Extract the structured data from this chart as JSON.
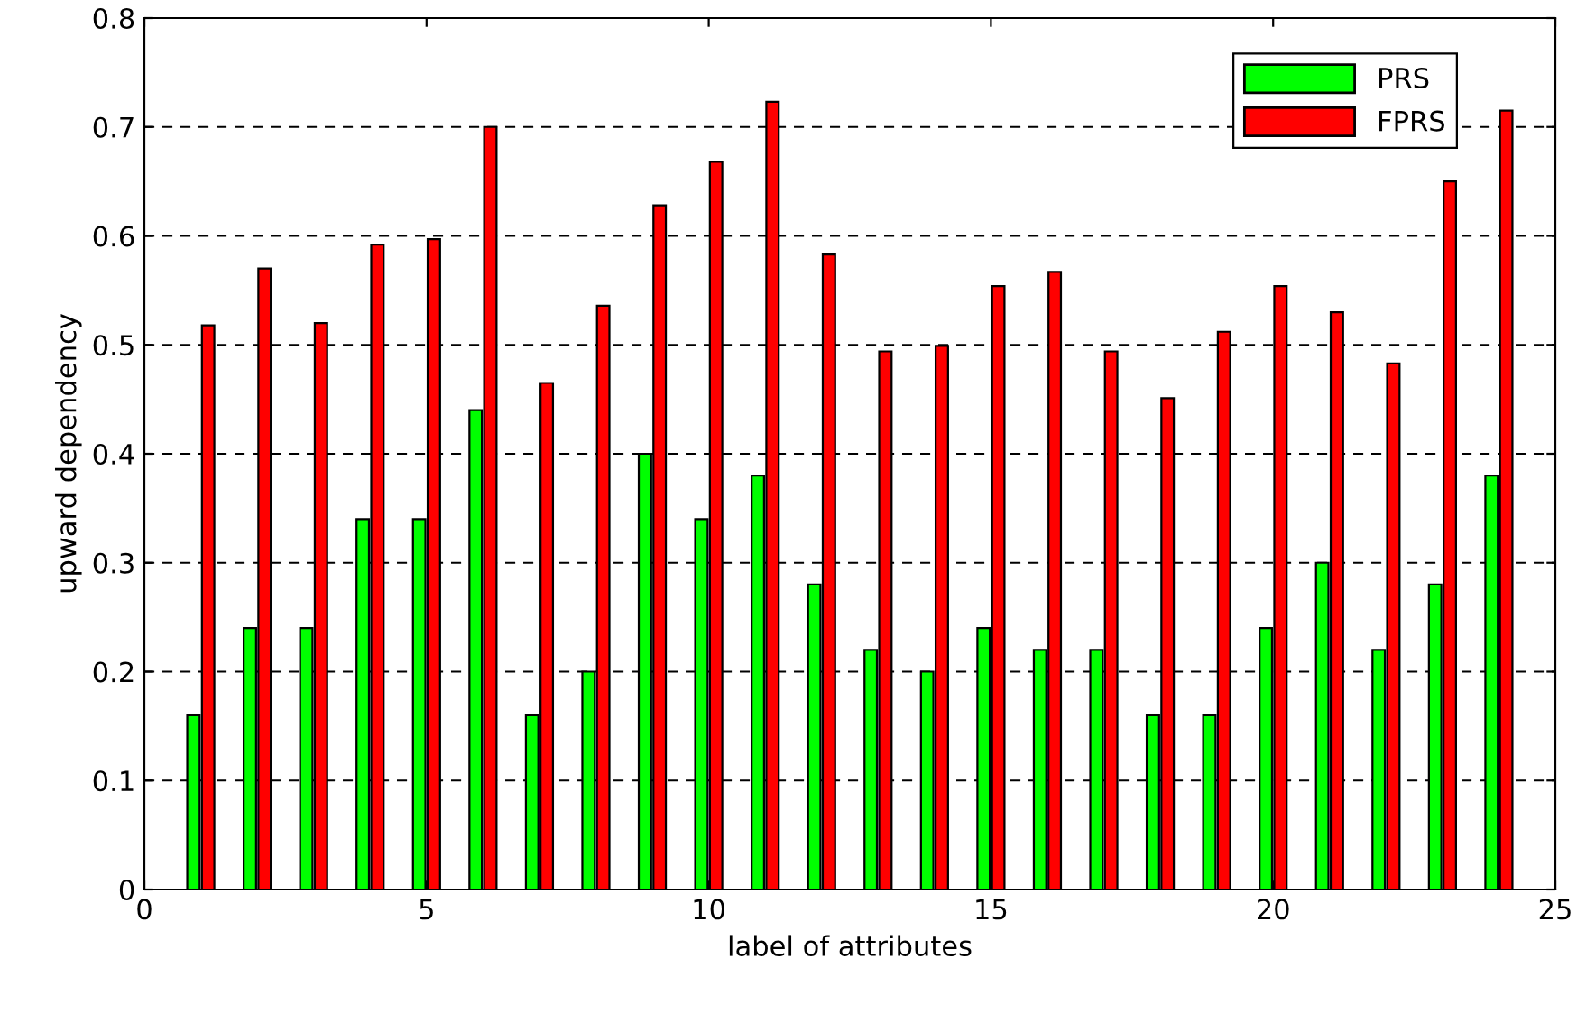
{
  "chart_data": {
    "type": "bar",
    "xlabel": "label of attributes",
    "ylabel": "upward dependency",
    "x": [
      1,
      2,
      3,
      4,
      5,
      6,
      7,
      8,
      9,
      10,
      11,
      12,
      13,
      14,
      15,
      16,
      17,
      18,
      19,
      20,
      21,
      22,
      23,
      24
    ],
    "series": [
      {
        "name": "PRS",
        "color": "#00ff00",
        "values": [
          0.16,
          0.24,
          0.24,
          0.34,
          0.34,
          0.44,
          0.16,
          0.2,
          0.4,
          0.34,
          0.38,
          0.28,
          0.22,
          0.2,
          0.24,
          0.22,
          0.22,
          0.16,
          0.16,
          0.24,
          0.3,
          0.22,
          0.28,
          0.38
        ]
      },
      {
        "name": "FPRS",
        "color": "#ff0000",
        "values": [
          0.518,
          0.57,
          0.52,
          0.592,
          0.597,
          0.7,
          0.465,
          0.536,
          0.628,
          0.668,
          0.723,
          0.583,
          0.494,
          0.499,
          0.554,
          0.567,
          0.494,
          0.451,
          0.512,
          0.554,
          0.53,
          0.483,
          0.65,
          0.715
        ]
      }
    ],
    "xlim": [
      0,
      25
    ],
    "xticks": [
      0,
      5,
      10,
      15,
      20,
      25
    ],
    "ylim": [
      0,
      0.8
    ],
    "yticks": [
      0,
      0.1,
      0.2,
      0.3,
      0.4,
      0.5,
      0.6,
      0.7,
      0.8
    ],
    "grid": "y",
    "legend": "top right"
  }
}
